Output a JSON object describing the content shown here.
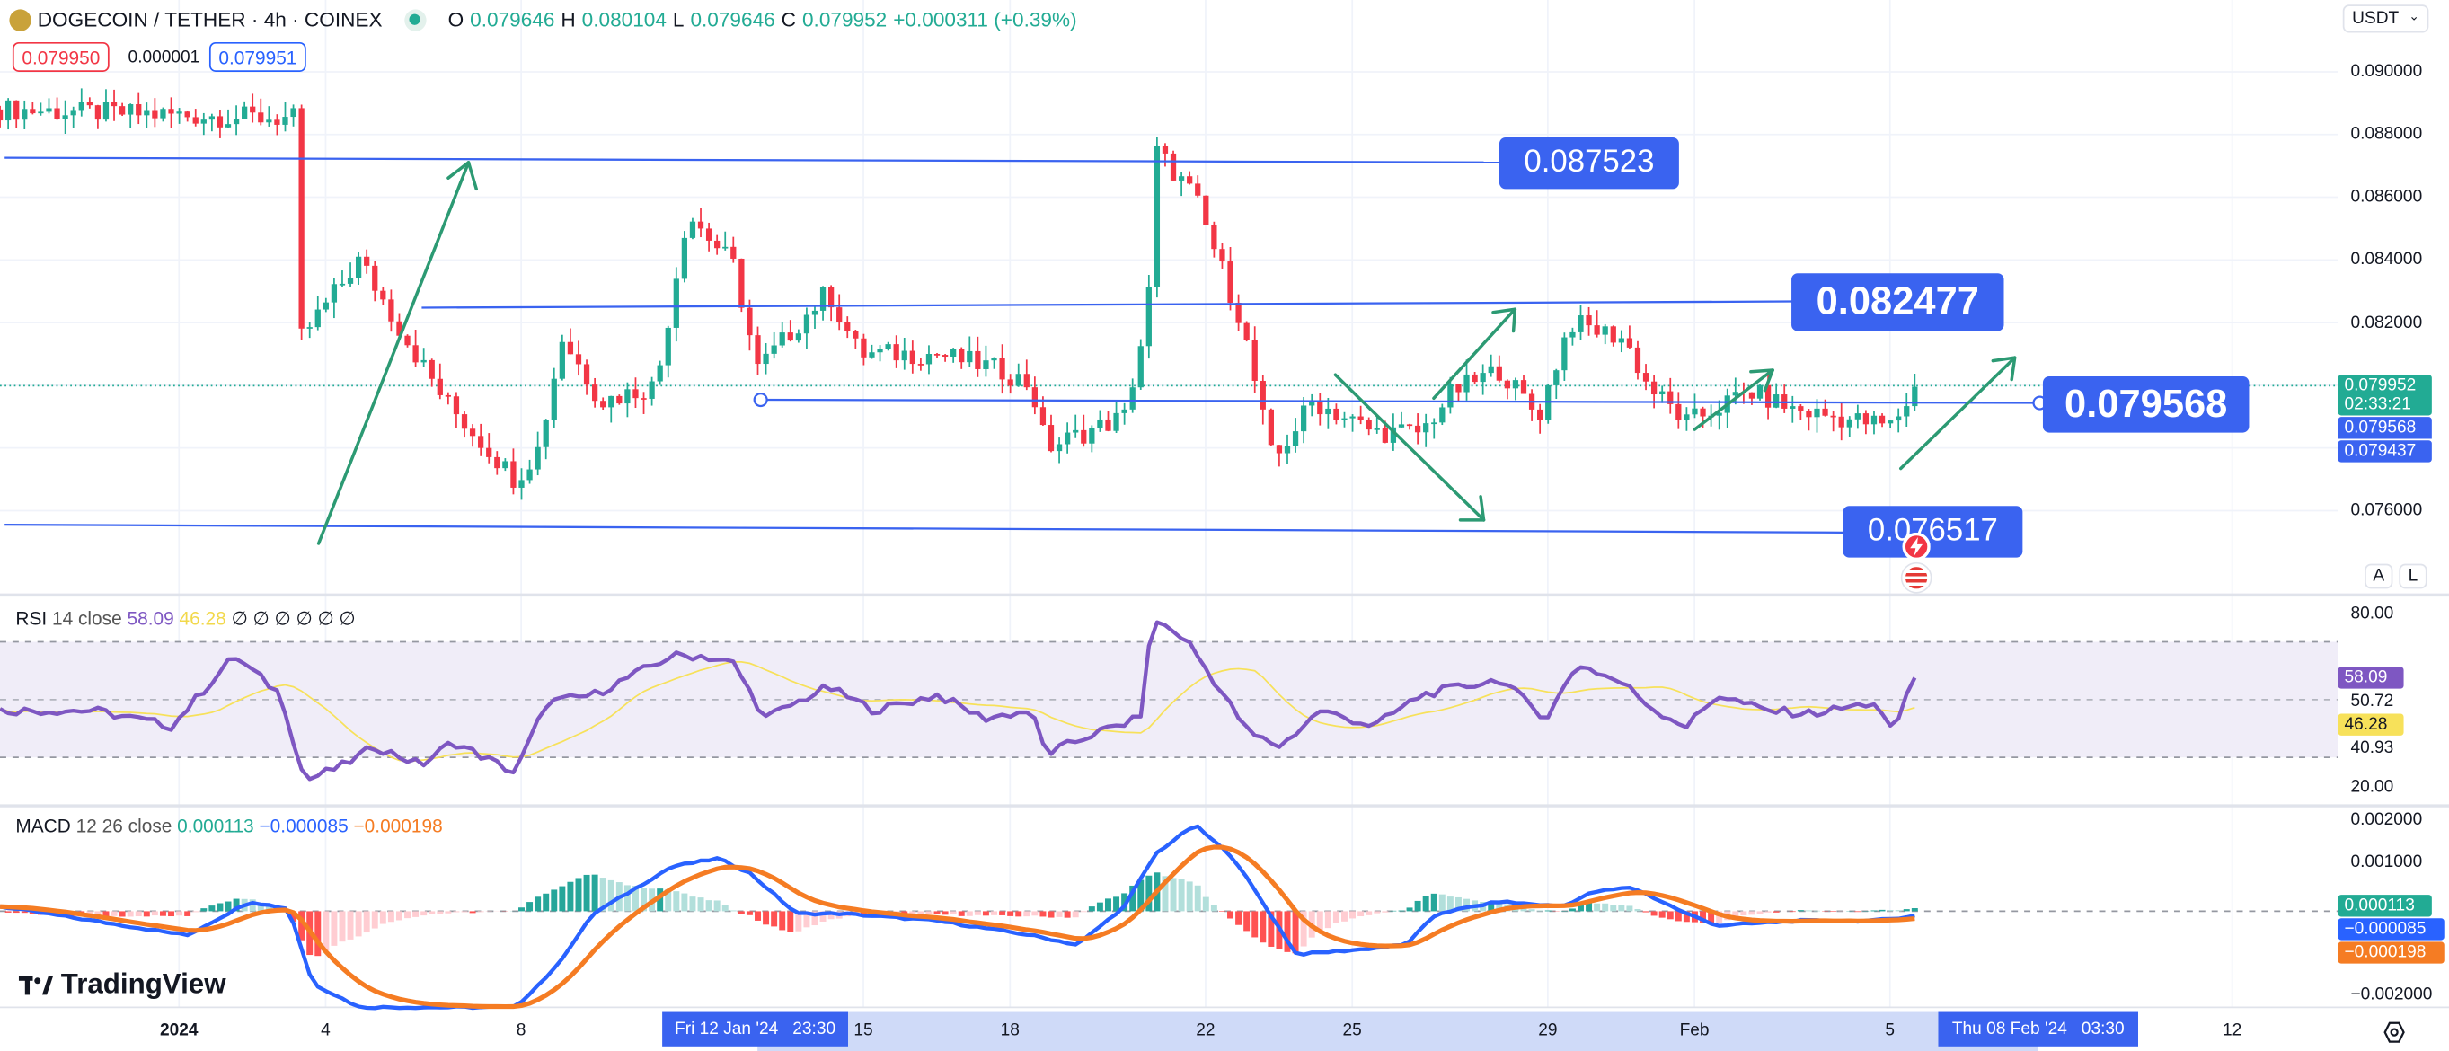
{
  "header": {
    "symbol": "DOGECOIN / TETHER · 4h · COINEX",
    "o_label": "O",
    "o": "0.079646",
    "h_label": "H",
    "h": "0.080104",
    "l_label": "L",
    "l": "0.079646",
    "c_label": "C",
    "c": "0.079952",
    "change": "+0.000311 (+0.39%)"
  },
  "trade": {
    "sell": "0.079950",
    "spread": "0.000001",
    "buy": "0.079951"
  },
  "currency": "USDT",
  "price_axis": {
    "ticks": [
      "0.090000",
      "0.088000",
      "0.086000",
      "0.084000",
      "0.082000",
      "0.076000"
    ],
    "last_price": "0.079952",
    "countdown": "02:33:21",
    "line_price": "0.079568",
    "low_price": "0.079437"
  },
  "scale_buttons": {
    "auto": "A",
    "log": "L"
  },
  "levels": {
    "l1": "0.087523",
    "l2": "0.082477",
    "l3": "0.079568",
    "l4": "0.076517"
  },
  "rsi": {
    "name": "RSI",
    "params": "14 close",
    "value": "58.09",
    "ma": "46.28",
    "extras": "∅ ∅ ∅ ∅ ∅ ∅",
    "axis": {
      "top": "80.00",
      "upper": "50.72",
      "lower": "40.93",
      "bottom": "20.00"
    }
  },
  "macd": {
    "name": "MACD",
    "params": "12 26 close",
    "hist": "0.000113",
    "macd": "−0.000085",
    "signal": "−0.000198",
    "axis": {
      "top": "0.002000",
      "mid": "0.001000",
      "bottom": "−0.002000"
    }
  },
  "time_axis": {
    "labels": [
      [
        "2024",
        1
      ],
      [
        "4",
        4
      ],
      [
        "8",
        8
      ],
      [
        "15",
        15
      ],
      [
        "18",
        18
      ],
      [
        "22",
        22
      ],
      [
        "25",
        25
      ],
      [
        "29",
        29
      ],
      [
        "Feb",
        32
      ],
      [
        "5",
        36
      ],
      [
        "12",
        43
      ]
    ],
    "range_start": "Fri 12 Jan '24   23:30",
    "range_end": "Thu 08 Feb '24   03:30"
  },
  "logo": "TradingView",
  "colors": {
    "up": "#22ab94",
    "down": "#f23645",
    "rsi": "#7e57c2",
    "rsi_ma": "#f7e15a",
    "macd": "#2962ff",
    "signal": "#f57c23",
    "drawing": "#3a63f0",
    "arrow": "#2c9a73"
  },
  "chart_data": {
    "type": "candlestick",
    "price_path": [
      [
        -2.66,
        0.0888
      ],
      [
        3.41,
        0.0885
      ],
      [
        3.5,
        0.0815
      ],
      [
        3.73,
        0.082
      ],
      [
        4.69,
        0.084
      ],
      [
        5.64,
        0.0815
      ],
      [
        6.44,
        0.0795
      ],
      [
        7.88,
        0.077
      ],
      [
        8.36,
        0.078
      ],
      [
        8.84,
        0.0815
      ],
      [
        9.64,
        0.0795
      ],
      [
        10.76,
        0.08
      ],
      [
        11.4,
        0.0855
      ],
      [
        12.35,
        0.0838
      ],
      [
        12.83,
        0.0805
      ],
      [
        14.27,
        0.083
      ],
      [
        14.91,
        0.081
      ],
      [
        16.51,
        0.081
      ],
      [
        17.79,
        0.0805
      ],
      [
        18.43,
        0.08
      ],
      [
        18.74,
        0.078
      ],
      [
        20.34,
        0.079
      ],
      [
        20.82,
        0.0823
      ],
      [
        20.98,
        0.0875
      ],
      [
        21.78,
        0.086
      ],
      [
        22.74,
        0.082
      ],
      [
        23.38,
        0.0775
      ],
      [
        24.18,
        0.0795
      ],
      [
        25.45,
        0.0785
      ],
      [
        26.41,
        0.0785
      ],
      [
        27.05,
        0.0798
      ],
      [
        28.01,
        0.0805
      ],
      [
        28.81,
        0.079
      ],
      [
        29.45,
        0.082
      ],
      [
        30.56,
        0.0815
      ],
      [
        31.04,
        0.08
      ],
      [
        31.84,
        0.0788
      ],
      [
        33.12,
        0.0798
      ],
      [
        34.08,
        0.0792
      ],
      [
        36.0,
        0.0787
      ],
      [
        36.57,
        0.07995
      ]
    ],
    "rsi_path": [
      [
        -2.66,
        46.5
      ],
      [
        -0.74,
        46.5
      ],
      [
        0.85,
        41.1
      ],
      [
        2.13,
        65.4
      ],
      [
        3.09,
        51.9
      ],
      [
        3.57,
        22.2
      ],
      [
        4.37,
        27.6
      ],
      [
        5.01,
        34.1
      ],
      [
        5.96,
        27.6
      ],
      [
        6.6,
        35.7
      ],
      [
        7.88,
        24.9
      ],
      [
        8.52,
        49.2
      ],
      [
        9.48,
        51.9
      ],
      [
        11.08,
        65.4
      ],
      [
        11.72,
        65.4
      ],
      [
        12.35,
        62.7
      ],
      [
        12.99,
        43.8
      ],
      [
        14.27,
        54.6
      ],
      [
        15.23,
        46.5
      ],
      [
        16.51,
        51.9
      ],
      [
        17.47,
        43.8
      ],
      [
        18.43,
        46.5
      ],
      [
        18.74,
        31.4
      ],
      [
        19.7,
        38.4
      ],
      [
        20.66,
        43.8
      ],
      [
        20.92,
        78.4
      ],
      [
        21.62,
        70.8
      ],
      [
        22.26,
        54.6
      ],
      [
        22.9,
        38.4
      ],
      [
        23.54,
        34.1
      ],
      [
        24.34,
        46.5
      ],
      [
        25.45,
        41.1
      ],
      [
        26.41,
        51.9
      ],
      [
        28.01,
        57.3
      ],
      [
        28.97,
        43.8
      ],
      [
        29.61,
        62.7
      ],
      [
        30.56,
        55.7
      ],
      [
        31.2,
        46.5
      ],
      [
        31.84,
        41.1
      ],
      [
        32.48,
        51.9
      ],
      [
        33.44,
        46.5
      ],
      [
        34.4,
        45.4
      ],
      [
        35.68,
        49.2
      ],
      [
        36.06,
        38.4
      ],
      [
        36.47,
        58.09
      ]
    ],
    "macd_path": [
      [
        -2.66,
        0.0001
      ],
      [
        1.17,
        -0.0005
      ],
      [
        2.45,
        0.0002
      ],
      [
        3.25,
        5e-05
      ],
      [
        3.73,
        -0.0015
      ],
      [
        4.69,
        -0.002
      ],
      [
        7.88,
        -0.002
      ],
      [
        8.68,
        -0.0012
      ],
      [
        9.48,
        -5e-05
      ],
      [
        11.08,
        0.00093
      ],
      [
        12.03,
        0.0011
      ],
      [
        12.67,
        0.0008
      ],
      [
        13.63,
        -5e-05
      ],
      [
        14.59,
        -5e-05
      ],
      [
        16.51,
        -0.0002
      ],
      [
        18.43,
        -0.0005
      ],
      [
        19.38,
        -0.0007
      ],
      [
        20.34,
        0.0001
      ],
      [
        20.98,
        0.0012
      ],
      [
        21.78,
        0.0018
      ],
      [
        22.58,
        0.0011
      ],
      [
        23.86,
        -0.0009
      ],
      [
        25.13,
        -0.0008
      ],
      [
        26.09,
        -0.0007
      ],
      [
        26.73,
        -5e-05
      ],
      [
        28.01,
        0.0002
      ],
      [
        29.29,
        0.0001
      ],
      [
        29.93,
        0.0004
      ],
      [
        30.72,
        0.0005
      ],
      [
        31.84,
        -5e-05
      ],
      [
        32.48,
        -0.0003
      ],
      [
        34.08,
        -0.0002
      ],
      [
        35.68,
        -0.0002
      ],
      [
        36.57,
        -8.5e-05
      ]
    ],
    "price_range": [
      0.0745,
      0.0915
    ],
    "rsi_range": [
      20,
      80
    ],
    "macd_range": [
      -0.002,
      0.002
    ]
  }
}
